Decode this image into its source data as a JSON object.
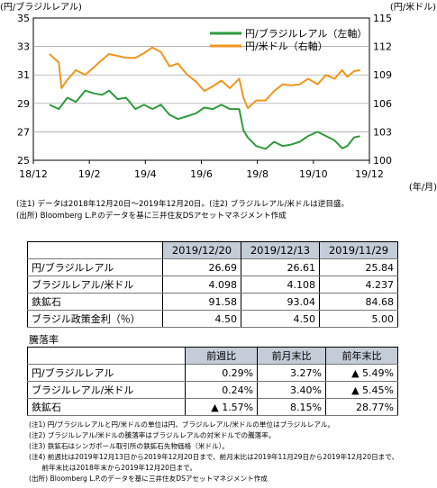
{
  "chart_data": {
    "type": "line",
    "left_axis_unit": "(円/ブラジルレアル)",
    "right_axis_unit": "(円/米ドル)",
    "x_unit": "(年/月)",
    "left_ticks": [
      "35",
      "33",
      "31",
      "29",
      "27",
      "25"
    ],
    "right_ticks": [
      "115",
      "112",
      "109",
      "106",
      "103",
      "100"
    ],
    "x_ticks": [
      "18/12",
      "19/2",
      "19/4",
      "19/6",
      "19/8",
      "19/10",
      "19/12"
    ],
    "left_ylim": [
      25,
      35
    ],
    "right_ylim": [
      100,
      115
    ],
    "series": [
      {
        "name": "円/ブラジルレアル（左軸）",
        "axis": "left",
        "color": "#2e9a3e",
        "x": [
          "2018-12-20",
          "2018-12-31",
          "2019-01-10",
          "2019-01-20",
          "2019-01-31",
          "2019-02-10",
          "2019-02-20",
          "2019-02-28",
          "2019-03-10",
          "2019-03-20",
          "2019-03-31",
          "2019-04-10",
          "2019-04-20",
          "2019-04-30",
          "2019-05-10",
          "2019-05-20",
          "2019-05-31",
          "2019-06-10",
          "2019-06-20",
          "2019-06-30",
          "2019-07-10",
          "2019-07-20",
          "2019-07-31",
          "2019-08-05",
          "2019-08-10",
          "2019-08-20",
          "2019-08-31",
          "2019-09-10",
          "2019-09-20",
          "2019-09-30",
          "2019-10-10",
          "2019-10-20",
          "2019-10-31",
          "2019-11-10",
          "2019-11-20",
          "2019-11-29",
          "2019-12-05",
          "2019-12-13",
          "2019-12-20"
        ],
        "y": [
          28.9,
          28.6,
          29.4,
          29.1,
          29.9,
          29.7,
          29.6,
          29.9,
          29.3,
          29.4,
          28.6,
          28.9,
          28.6,
          28.9,
          28.2,
          27.9,
          28.1,
          28.3,
          28.7,
          28.6,
          28.9,
          28.6,
          28.6,
          27.1,
          26.6,
          26.0,
          25.8,
          26.3,
          26.0,
          26.1,
          26.3,
          26.7,
          27.0,
          26.7,
          26.4,
          25.84,
          26.0,
          26.61,
          26.69
        ]
      },
      {
        "name": "円/米ドル（右軸）",
        "axis": "right",
        "color": "#f0961e",
        "x": [
          "2018-12-20",
          "2018-12-31",
          "2019-01-03",
          "2019-01-10",
          "2019-01-20",
          "2019-01-31",
          "2019-02-10",
          "2019-02-20",
          "2019-02-28",
          "2019-03-10",
          "2019-03-20",
          "2019-03-31",
          "2019-04-10",
          "2019-04-20",
          "2019-04-30",
          "2019-05-10",
          "2019-05-20",
          "2019-05-31",
          "2019-06-10",
          "2019-06-20",
          "2019-06-30",
          "2019-07-10",
          "2019-07-20",
          "2019-07-31",
          "2019-08-05",
          "2019-08-10",
          "2019-08-20",
          "2019-08-31",
          "2019-09-10",
          "2019-09-20",
          "2019-09-30",
          "2019-10-10",
          "2019-10-20",
          "2019-10-31",
          "2019-11-10",
          "2019-11-20",
          "2019-11-29",
          "2019-12-05",
          "2019-12-13",
          "2019-12-20"
        ],
        "y": [
          111.2,
          110.3,
          107.6,
          108.5,
          109.5,
          109.0,
          109.8,
          110.6,
          111.2,
          111.0,
          110.8,
          110.8,
          111.3,
          111.9,
          111.4,
          109.9,
          110.2,
          109.0,
          108.3,
          107.3,
          107.8,
          108.4,
          107.6,
          108.6,
          106.6,
          105.5,
          106.3,
          106.3,
          107.3,
          108.0,
          107.9,
          108.0,
          108.6,
          108.0,
          109.0,
          108.6,
          109.5,
          108.8,
          109.4,
          109.5
        ]
      }
    ]
  },
  "chart_notes": {
    "line1": "(注1) データは2018年12月20日～2019年12月20日。(注2) ブラジルレアル/米ドルは逆目盛。",
    "line2": "(出所) Bloomberg L.P.のデータを基に三井住友DSアセットマネジメント作成"
  },
  "table_levels": {
    "headers": [
      "2019/12/20",
      "2019/12/13",
      "2019/11/29"
    ],
    "rows": [
      {
        "label": "円/ブラジルレアル",
        "values": [
          "26.69",
          "26.61",
          "25.84"
        ]
      },
      {
        "label": "ブラジルレアル/米ドル",
        "values": [
          "4.098",
          "4.108",
          "4.237"
        ]
      },
      {
        "label": "鉄鉱石",
        "values": [
          "91.58",
          "93.04",
          "84.68"
        ]
      },
      {
        "label": "ブラジル政策金利（％）",
        "values": [
          "4.50",
          "4.50",
          "5.00"
        ]
      }
    ]
  },
  "table_change": {
    "title": "騰落率",
    "headers": [
      "前週比",
      "前月末比",
      "前年末比"
    ],
    "rows": [
      {
        "label": "円/ブラジルレアル",
        "values": [
          "0.29%",
          "3.27%",
          "▲ 5.49%"
        ]
      },
      {
        "label": "ブラジルレアル/米ドル",
        "values": [
          "0.24%",
          "3.40%",
          "▲ 5.45%"
        ]
      },
      {
        "label": "鉄鉱石",
        "values": [
          "▲ 1.57%",
          "8.15%",
          "28.77%"
        ]
      }
    ]
  },
  "table_notes": [
    "(注1) 円/ブラジルレアルと円/米ドルの単位は円、ブラジルレアル/米ドルの単位はブラジルレアル。",
    "(注2) ブラジルレアル/米ドルの騰落率はブラジルレアルの対米ドルでの騰落率。",
    "(注3) 鉄鉱石はシンガポール取引所の鉄鉱石先物価格（米ドル）。",
    "(注4) 前週比は2019年12月13日から2019年12月20日まで、前月末比は2019年11月29日から2019年12月20日まで、",
    "      前年末比は2018年末から2019年12月20日まで。",
    "(出所) Bloomberg L.P.のデータを基に三井住友DSアセットマネジメント作成"
  ]
}
